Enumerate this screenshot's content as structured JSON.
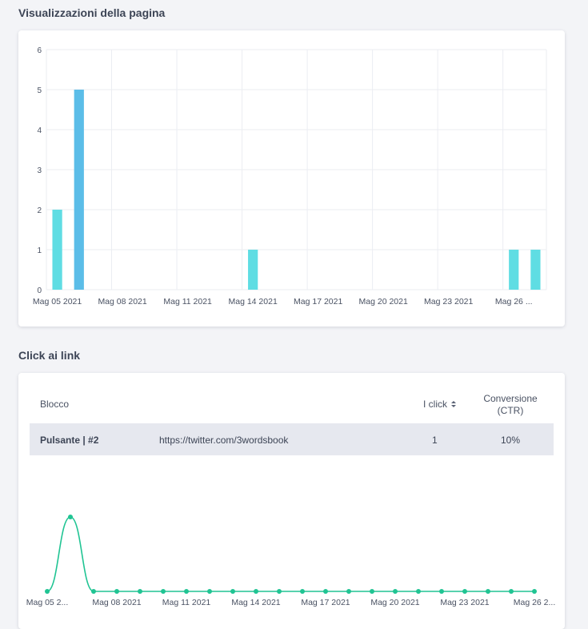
{
  "views_section": {
    "title": "Visualizzazioni della pagina"
  },
  "clicks_section": {
    "title": "Click ai link",
    "table": {
      "headers": {
        "block": "Blocco",
        "clicks": "I click",
        "conversion_line1": "Conversione",
        "conversion_line2": "(CTR)"
      },
      "rows": [
        {
          "block": "Pulsante | #2",
          "url": "https://twitter.com/3wordsbook",
          "clicks": "1",
          "ctr": "10%"
        }
      ]
    },
    "sort_icon": "sort-icon"
  },
  "colors": {
    "bar_cyan": "#5fdde3",
    "bar_blue": "#5bbde8",
    "line_green": "#20c493",
    "grid": "#ebedf2",
    "row_bg": "#e6e8ef"
  },
  "chart_data": [
    {
      "type": "bar",
      "x": [
        "May 05 2021",
        "May 06 2021",
        "May 07 2021",
        "May 08 2021",
        "May 09 2021",
        "May 10 2021",
        "May 11 2021",
        "May 12 2021",
        "May 13 2021",
        "May 14 2021",
        "May 15 2021",
        "May 16 2021",
        "May 17 2021",
        "May 18 2021",
        "May 19 2021",
        "May 20 2021",
        "May 21 2021",
        "May 22 2021",
        "May 23 2021",
        "May 24 2021",
        "May 25 2021",
        "May 26 2021",
        "May 27 2021"
      ],
      "values": [
        2,
        5,
        0,
        0,
        0,
        0,
        0,
        0,
        0,
        1,
        0,
        0,
        0,
        0,
        0,
        0,
        0,
        0,
        0,
        0,
        0,
        1,
        1
      ],
      "tick_labels": [
        "Mag 05 2021",
        "Mag 08 2021",
        "Mag 11 2021",
        "Mag 14 2021",
        "Mag 17 2021",
        "Mag 20 2021",
        "Mag 23 2021",
        "Mag 26 ..."
      ],
      "tick_indices": [
        0,
        3,
        6,
        9,
        12,
        15,
        18,
        21
      ],
      "yticks": [
        0,
        1,
        2,
        3,
        4,
        5,
        6
      ],
      "ylim": [
        0,
        6
      ],
      "grid": true,
      "title": "Visualizzazioni della pagina",
      "xlabel": "",
      "ylabel": ""
    },
    {
      "type": "line",
      "x": [
        "May 05 2021",
        "May 06 2021",
        "May 07 2021",
        "May 08 2021",
        "May 09 2021",
        "May 10 2021",
        "May 11 2021",
        "May 12 2021",
        "May 13 2021",
        "May 14 2021",
        "May 15 2021",
        "May 16 2021",
        "May 17 2021",
        "May 18 2021",
        "May 19 2021",
        "May 20 2021",
        "May 21 2021",
        "May 22 2021",
        "May 23 2021",
        "May 24 2021",
        "May 25 2021",
        "May 26 2021"
      ],
      "values": [
        0,
        1,
        0,
        0,
        0,
        0,
        0,
        0,
        0,
        0,
        0,
        0,
        0,
        0,
        0,
        0,
        0,
        0,
        0,
        0,
        0,
        0
      ],
      "tick_labels": [
        "Mag 05 2...",
        "Mag 08 2021",
        "Mag 11 2021",
        "Mag 14 2021",
        "Mag 17 2021",
        "Mag 20 2021",
        "Mag 23 2021",
        "Mag 26 2..."
      ],
      "tick_indices": [
        0,
        3,
        6,
        9,
        12,
        15,
        18,
        21
      ],
      "grid": false,
      "title": "",
      "xlabel": "",
      "ylabel": ""
    }
  ]
}
